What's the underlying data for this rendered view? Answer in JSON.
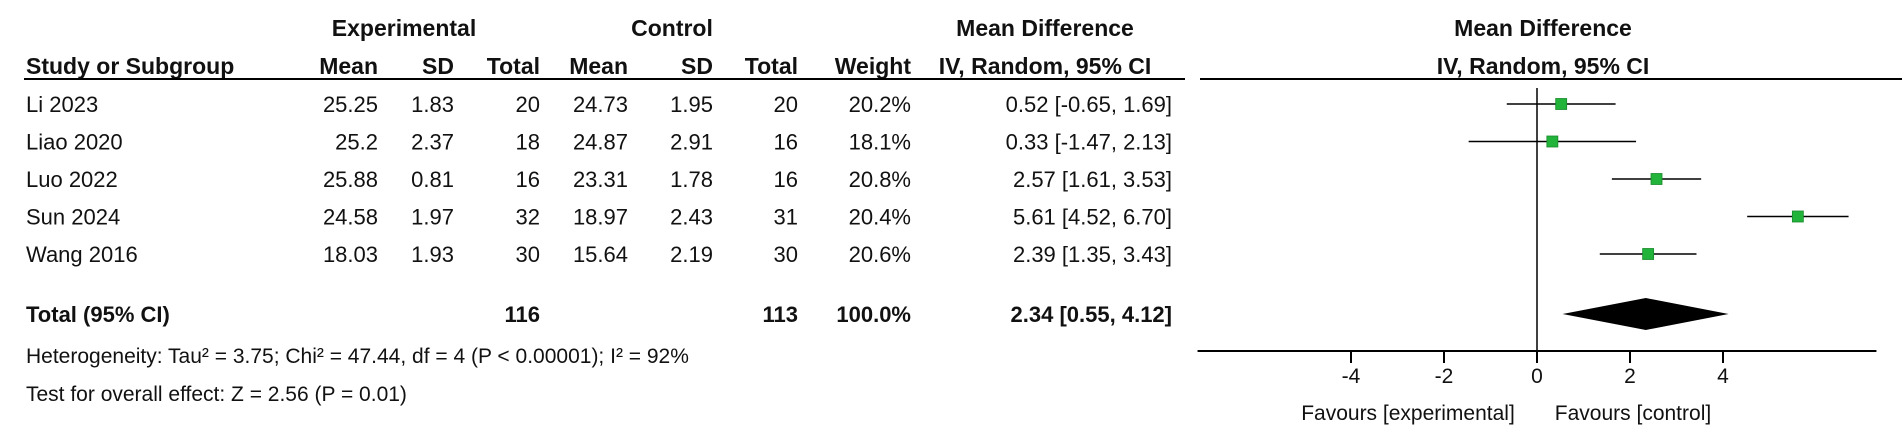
{
  "chart_data": {
    "type": "forest",
    "header": {
      "experimental": "Experimental",
      "control": "Control",
      "mean_difference": "Mean Difference",
      "study_or_subgroup": "Study or Subgroup",
      "mean": "Mean",
      "sd": "SD",
      "total": "Total",
      "weight": "Weight",
      "method": "IV, Random, 95% CI",
      "plot_title": "Mean Difference",
      "plot_method": "IV, Random, 95% CI"
    },
    "studies": [
      {
        "name": "Li 2023",
        "exp_mean": "25.25",
        "exp_sd": "1.83",
        "exp_total": "20",
        "ctrl_mean": "24.73",
        "ctrl_sd": "1.95",
        "ctrl_total": "20",
        "weight": "20.2%",
        "ci_text": "0.52 [-0.65, 1.69]",
        "md": 0.52,
        "lo": -0.65,
        "hi": 1.69
      },
      {
        "name": "Liao 2020",
        "exp_mean": "25.2",
        "exp_sd": "2.37",
        "exp_total": "18",
        "ctrl_mean": "24.87",
        "ctrl_sd": "2.91",
        "ctrl_total": "16",
        "weight": "18.1%",
        "ci_text": "0.33 [-1.47, 2.13]",
        "md": 0.33,
        "lo": -1.47,
        "hi": 2.13
      },
      {
        "name": "Luo 2022",
        "exp_mean": "25.88",
        "exp_sd": "0.81",
        "exp_total": "16",
        "ctrl_mean": "23.31",
        "ctrl_sd": "1.78",
        "ctrl_total": "16",
        "weight": "20.8%",
        "ci_text": "2.57 [1.61, 3.53]",
        "md": 2.57,
        "lo": 1.61,
        "hi": 3.53
      },
      {
        "name": "Sun 2024",
        "exp_mean": "24.58",
        "exp_sd": "1.97",
        "exp_total": "32",
        "ctrl_mean": "18.97",
        "ctrl_sd": "2.43",
        "ctrl_total": "31",
        "weight": "20.4%",
        "ci_text": "5.61 [4.52, 6.70]",
        "md": 5.61,
        "lo": 4.52,
        "hi": 6.7
      },
      {
        "name": "Wang 2016",
        "exp_mean": "18.03",
        "exp_sd": "1.93",
        "exp_total": "30",
        "ctrl_mean": "15.64",
        "ctrl_sd": "2.19",
        "ctrl_total": "30",
        "weight": "20.6%",
        "ci_text": "2.39 [1.35, 3.43]",
        "md": 2.39,
        "lo": 1.35,
        "hi": 3.43
      }
    ],
    "total": {
      "label": "Total (95% CI)",
      "exp_total": "116",
      "ctrl_total": "113",
      "weight": "100.0%",
      "ci_text": "2.34 [0.55, 4.12]",
      "md": 2.34,
      "lo": 0.55,
      "hi": 4.12
    },
    "heterogeneity": "Heterogeneity: Tau² = 3.75; Chi² = 47.44, df = 4 (P < 0.00001); I² = 92%",
    "overall_effect": "Test for overall effect: Z = 2.56 (P = 0.01)",
    "axis": {
      "ticks": [
        -4,
        -2,
        0,
        2,
        4
      ],
      "tick_labels": [
        "-4",
        "-2",
        "0",
        "2",
        "4"
      ],
      "xlim": [
        -7.3,
        7.3
      ],
      "favours_left": "Favours [experimental]",
      "favours_right": "Favours [control]"
    },
    "marker_color": "#22b33a",
    "line_color": "#000000"
  }
}
